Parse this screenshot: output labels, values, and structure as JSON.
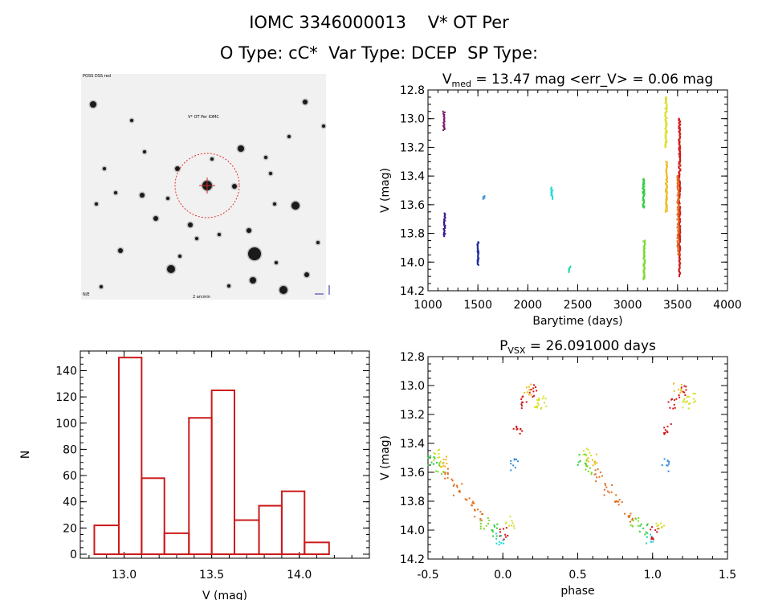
{
  "header": {
    "title_line1": "IOMC 3346000013    V* OT Per",
    "title_line2": "O Type: cC*  Var Type: DCEP  SP Type:"
  },
  "image_panel": {
    "label_top_left": "POSS DSS red",
    "label_target": "V* OT Per  IOMC",
    "label_bottom_left": "N/E",
    "label_bottom_center": "2 arcmin"
  },
  "chart_data": [
    {
      "type": "scatter",
      "name": "lightcurve",
      "title": "V_med = 13.47 mag <err_V> = 0.06 mag",
      "xlabel": "Barytime (days)",
      "ylabel": "V (mag)",
      "xlim": [
        1000,
        4000
      ],
      "ylim": [
        14.2,
        12.8
      ],
      "y_inverted": true,
      "xticks": [
        1000,
        1500,
        2000,
        2500,
        3000,
        3500,
        4000
      ],
      "yticks": [
        "12.8",
        "13.0",
        "13.2",
        "13.4",
        "13.6",
        "13.8",
        "14.0",
        "14.2"
      ],
      "groups": [
        {
          "x": 1160,
          "ymin": 12.95,
          "ymax": 13.08,
          "color": "#7a1a6a"
        },
        {
          "x": 1165,
          "ymin": 13.66,
          "ymax": 13.82,
          "color": "#3a1a8a"
        },
        {
          "x": 1500,
          "ymin": 13.86,
          "ymax": 14.02,
          "color": "#1a2a9a"
        },
        {
          "x": 1560,
          "ymin": 13.54,
          "ymax": 13.56,
          "color": "#2f8ad8"
        },
        {
          "x": 2240,
          "ymin": 13.48,
          "ymax": 13.56,
          "color": "#22d8d8"
        },
        {
          "x": 2420,
          "ymin": 14.03,
          "ymax": 14.07,
          "color": "#22d8a8"
        },
        {
          "x": 3160,
          "ymin": 13.42,
          "ymax": 13.62,
          "color": "#2fcf3f"
        },
        {
          "x": 3165,
          "ymin": 13.85,
          "ymax": 14.12,
          "color": "#7ad82a"
        },
        {
          "x": 3385,
          "ymin": 12.85,
          "ymax": 13.2,
          "color": "#d8e02a"
        },
        {
          "x": 3388,
          "ymin": 13.3,
          "ymax": 13.65,
          "color": "#f0b81a"
        },
        {
          "x": 3520,
          "ymin": 13.0,
          "ymax": 14.1,
          "color": "#d01818"
        },
        {
          "x": 3505,
          "ymin": 13.4,
          "ymax": 13.95,
          "color": "#e07020"
        }
      ]
    },
    {
      "type": "bar",
      "name": "histogram",
      "xlabel": "V (mag)",
      "ylabel": "N",
      "xlim": [
        12.75,
        14.4
      ],
      "ylim": [
        0,
        155
      ],
      "xticks": [
        "13.0",
        "13.5",
        "14.0"
      ],
      "yticks": [
        "0",
        "20",
        "40",
        "60",
        "80",
        "100",
        "120",
        "140"
      ],
      "bin_edges": [
        12.83,
        12.97,
        13.1,
        13.23,
        13.37,
        13.5,
        13.63,
        13.77,
        13.9,
        14.03,
        14.17
      ],
      "values": [
        22,
        150,
        58,
        16,
        104,
        125,
        26,
        37,
        48,
        9
      ],
      "color": "#cc1a1a"
    },
    {
      "type": "scatter",
      "name": "phased",
      "title": "P_VSX = 26.091000 days",
      "xlabel": "phase",
      "ylabel": "V (mag)",
      "xlim": [
        -0.5,
        1.5
      ],
      "ylim": [
        14.2,
        12.8
      ],
      "y_inverted": true,
      "xticks": [
        "-0.5",
        "0.0",
        "0.5",
        "1.0",
        "1.5"
      ],
      "yticks": [
        "12.8",
        "13.0",
        "13.2",
        "13.4",
        "13.6",
        "13.8",
        "14.0",
        "14.2"
      ],
      "clusters": [
        {
          "x": -0.47,
          "y": 13.52,
          "color": "#2fcf3f"
        },
        {
          "x": -0.44,
          "y": 13.48,
          "color": "#d8e02a"
        },
        {
          "x": -0.42,
          "y": 13.58,
          "color": "#7ad82a"
        },
        {
          "x": -0.4,
          "y": 13.52,
          "color": "#f0b81a"
        },
        {
          "x": -0.36,
          "y": 13.62,
          "color": "#e07020"
        },
        {
          "x": -0.3,
          "y": 13.72,
          "color": "#e07020"
        },
        {
          "x": -0.22,
          "y": 13.8,
          "color": "#e07020"
        },
        {
          "x": -0.16,
          "y": 13.9,
          "color": "#e07020"
        },
        {
          "x": -0.12,
          "y": 13.96,
          "color": "#7ad82a"
        },
        {
          "x": -0.06,
          "y": 14.0,
          "color": "#2fcf3f"
        },
        {
          "x": -0.02,
          "y": 14.06,
          "color": "#22d8d8"
        },
        {
          "x": 0.01,
          "y": 14.02,
          "color": "#d01818"
        },
        {
          "x": 0.05,
          "y": 13.95,
          "color": "#d8e02a"
        },
        {
          "x": 0.08,
          "y": 13.55,
          "color": "#2f8ad8"
        },
        {
          "x": 0.1,
          "y": 13.3,
          "color": "#d01818"
        },
        {
          "x": 0.13,
          "y": 13.12,
          "color": "#d01818"
        },
        {
          "x": 0.17,
          "y": 13.02,
          "color": "#f0b81a"
        },
        {
          "x": 0.2,
          "y": 13.04,
          "color": "#d01818"
        },
        {
          "x": 0.23,
          "y": 13.12,
          "color": "#d8e02a"
        },
        {
          "x": 0.26,
          "y": 13.1,
          "color": "#d8e02a"
        }
      ]
    }
  ]
}
